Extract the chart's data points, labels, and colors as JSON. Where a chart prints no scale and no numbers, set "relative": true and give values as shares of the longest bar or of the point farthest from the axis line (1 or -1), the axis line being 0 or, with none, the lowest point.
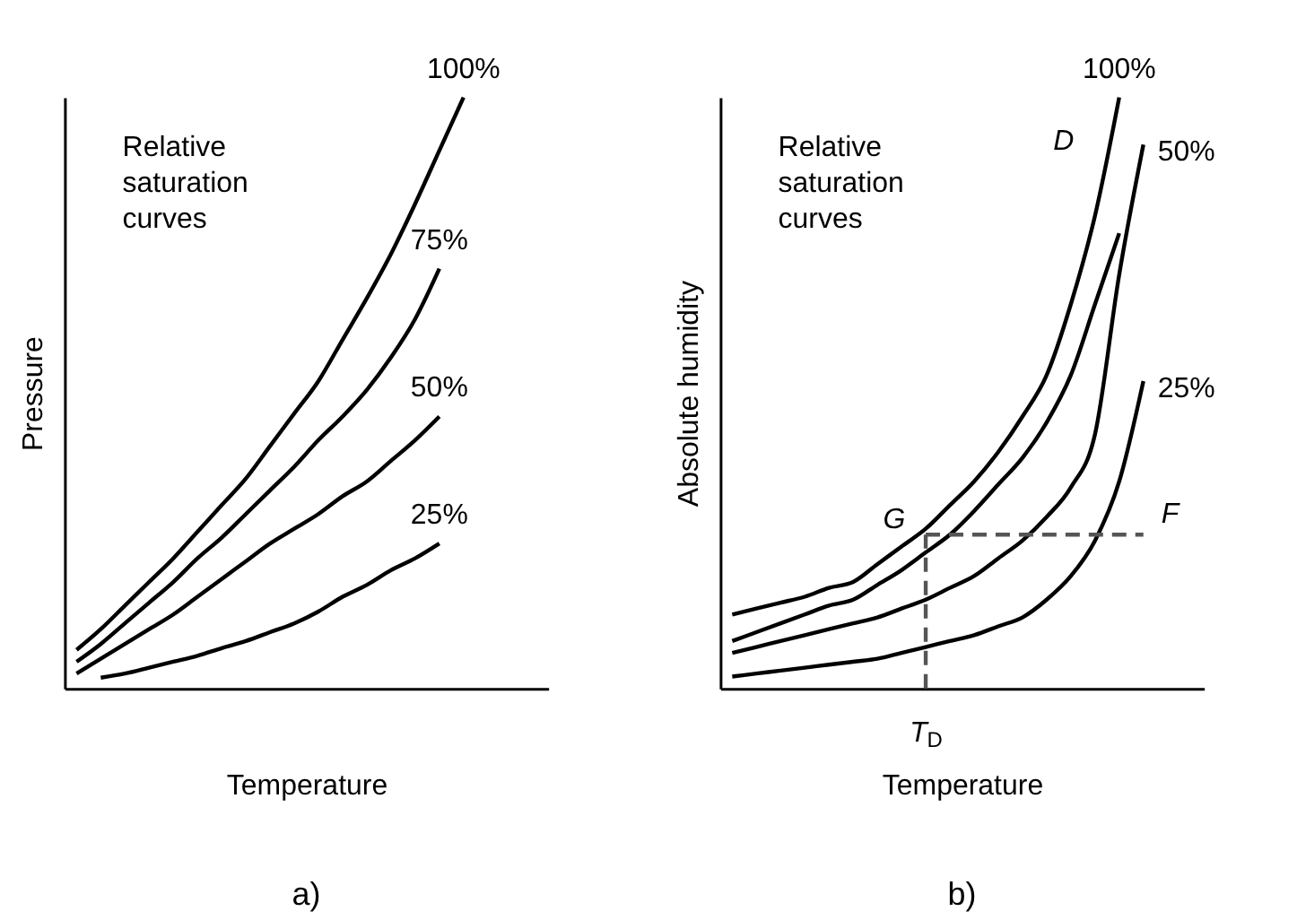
{
  "chart_data": [
    {
      "type": "line",
      "title": "a)",
      "xlabel": "Temperature",
      "ylabel": "Pressure",
      "relative": true,
      "legend": false,
      "marker": "none",
      "line_style": "solid",
      "categories": [
        null,
        null,
        null,
        null,
        null,
        null,
        null,
        null,
        null,
        null,
        null,
        null,
        null,
        null,
        null,
        null,
        null,
        null,
        null,
        null
      ],
      "annotations": [
        "Relative\nsaturation\ncurves"
      ],
      "series": [
        {
          "name": "100%",
          "color": "#000000",
          "values": [
            0.065,
            0.1,
            0.14,
            0.18,
            0.22,
            0.265,
            0.31,
            0.355,
            0.41,
            0.465,
            0.52,
            0.59,
            0.66,
            0.735,
            0.82,
            0.91,
            1,
            null,
            null,
            null
          ]
        },
        {
          "name": "75%",
          "color": "#000000",
          "values": [
            0.045,
            0.075,
            0.11,
            0.145,
            0.18,
            0.22,
            0.255,
            0.295,
            0.335,
            0.375,
            0.42,
            0.46,
            0.505,
            0.56,
            0.625,
            0.71,
            null,
            null,
            null,
            null
          ]
        },
        {
          "name": "50%",
          "color": "#000000",
          "values": [
            0.025,
            0.05,
            0.075,
            0.1,
            0.125,
            0.155,
            0.185,
            0.215,
            0.245,
            0.27,
            0.295,
            0.325,
            0.35,
            0.385,
            0.42,
            0.46,
            null,
            null,
            null,
            null
          ]
        },
        {
          "name": "25%",
          "color": "#000000",
          "values": [
            null,
            0.018,
            0.025,
            0.035,
            0.045,
            0.055,
            0.068,
            0.08,
            0.095,
            0.11,
            0.13,
            0.155,
            0.175,
            0.2,
            0.22,
            0.245,
            null,
            null,
            null,
            null
          ]
        }
      ]
    },
    {
      "type": "line",
      "title": "b)",
      "xlabel": "Temperature",
      "ylabel": "Absolute humidity",
      "relative": true,
      "legend": false,
      "marker": "none",
      "line_style": "solid",
      "categories": [
        null,
        null,
        null,
        null,
        null,
        null,
        null,
        null,
        null,
        null,
        null,
        null,
        null,
        null,
        null,
        null,
        null,
        null,
        null,
        null
      ],
      "annotations": [
        "Relative\nsaturation\ncurves",
        "D",
        "G",
        "F",
        "T$_{D}$"
      ],
      "series": [
        {
          "name": "100%",
          "color": "#000000",
          "values": [
            0.125,
            0.135,
            0.145,
            0.155,
            0.17,
            0.18,
            0.21,
            0.24,
            0.27,
            0.31,
            0.35,
            0.4,
            0.46,
            0.53,
            0.65,
            0.8,
            1,
            null,
            null,
            null
          ]
        },
        {
          "color": "#000000",
          "values": [
            0.08,
            0.095,
            0.11,
            0.125,
            0.14,
            0.15,
            0.175,
            0.2,
            0.23,
            0.26,
            0.3,
            0.345,
            0.39,
            0.45,
            0.53,
            0.65,
            0.77,
            null,
            null,
            null
          ]
        },
        {
          "name": "50%",
          "color": "#000000",
          "values": [
            0.06,
            0.07,
            0.08,
            0.09,
            0.1,
            0.11,
            0.12,
            0.135,
            0.15,
            0.17,
            0.19,
            0.22,
            0.25,
            0.29,
            0.34,
            0.43,
            0.7,
            0.92,
            null,
            null
          ]
        },
        {
          "name": "25%",
          "color": "#000000",
          "values": [
            0.02,
            0.025,
            0.03,
            0.035,
            0.04,
            0.045,
            0.05,
            0.06,
            0.07,
            0.08,
            0.09,
            0.105,
            0.12,
            0.15,
            0.19,
            0.25,
            0.35,
            0.52,
            null,
            null
          ]
        },
        {
          "color": "#555555",
          "line_style": "dashed",
          "values": [
            null,
            null,
            null,
            null,
            null,
            null,
            null,
            null,
            0.26,
            0.26,
            0.26,
            0.26,
            0.26,
            0.26,
            0.26,
            0.26,
            0.26,
            0.26,
            null,
            null
          ]
        }
      ]
    }
  ]
}
